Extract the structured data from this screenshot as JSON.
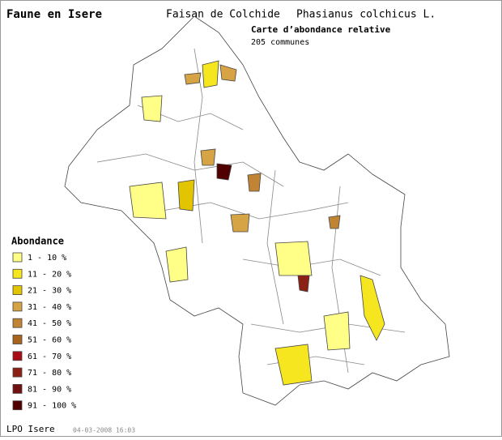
{
  "header": {
    "site": "Faune en Isere",
    "common_name": "Faisan de Colchide",
    "latin_name": "Phasianus colchicus L."
  },
  "map": {
    "subtitle": "Carte d’abondance relative",
    "count": "205 communes"
  },
  "legend": {
    "title": "Abondance",
    "items": [
      {
        "label": "1 - 10 %",
        "color": "#ffff88"
      },
      {
        "label": "11 - 20 %",
        "color": "#f5e620"
      },
      {
        "label": "21 - 30 %",
        "color": "#e2c400"
      },
      {
        "label": "31 - 40 %",
        "color": "#d6a444"
      },
      {
        "label": "41 - 50 %",
        "color": "#c08434"
      },
      {
        "label": "51 - 60 %",
        "color": "#a8641c"
      },
      {
        "label": "61 - 70 %",
        "color": "#a80c14"
      },
      {
        "label": "71 - 80 %",
        "color": "#8c2014"
      },
      {
        "label": "81 - 90 %",
        "color": "#701010"
      },
      {
        "label": "91 - 100 %",
        "color": "#500000"
      }
    ]
  },
  "footer": {
    "org": "LPO Isere",
    "timestamp": "04-03-2008 16:03"
  }
}
